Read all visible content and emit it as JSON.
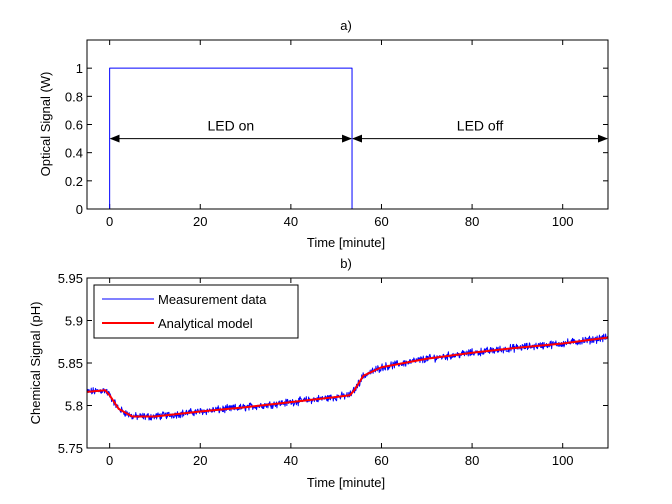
{
  "chart_data": [
    {
      "type": "line",
      "panel_label": "a)",
      "xlabel": "Time [minute]",
      "ylabel": "Optical Signal (W)",
      "xlim": [
        -5,
        110
      ],
      "ylim": [
        0,
        1.2
      ],
      "xticks": [
        0,
        20,
        40,
        60,
        80,
        100
      ],
      "yticks": [
        0,
        0.2,
        0.4,
        0.6,
        0.8,
        1
      ],
      "ytick_labels": [
        "0",
        "0.2",
        "0.4",
        "0.6",
        "0.8",
        "1"
      ],
      "series": [
        {
          "name": "Optical signal",
          "color": "#0000ff",
          "x": [
            -5,
            0,
            0,
            53.5,
            53.5,
            110
          ],
          "y": [
            0,
            0,
            1,
            1,
            0,
            0
          ]
        }
      ],
      "annotations": [
        {
          "text": "LED on",
          "from": 0,
          "to": 53.5,
          "y": 0.5
        },
        {
          "text": "LED off",
          "from": 53.5,
          "to": 110,
          "y": 0.5
        }
      ]
    },
    {
      "type": "line",
      "panel_label": "b)",
      "xlabel": "Time [minute]",
      "ylabel": "Chemical Signal (pH)",
      "xlim": [
        -5,
        110
      ],
      "ylim": [
        5.75,
        5.95
      ],
      "xticks": [
        0,
        20,
        40,
        60,
        80,
        100
      ],
      "yticks": [
        5.75,
        5.8,
        5.85,
        5.9,
        5.95
      ],
      "ytick_labels": [
        "5.75",
        "5.8",
        "5.85",
        "5.9",
        "5.95"
      ],
      "legend": {
        "position": "top-left"
      },
      "series": [
        {
          "name": "Measurement data",
          "color": "#0000ff",
          "noisy": true,
          "x": [
            -5,
            -1,
            0,
            2,
            5,
            10,
            20,
            30,
            40,
            50,
            53,
            54,
            56,
            60,
            70,
            80,
            90,
            100,
            110
          ],
          "y": [
            5.816,
            5.818,
            5.812,
            5.796,
            5.787,
            5.787,
            5.793,
            5.798,
            5.804,
            5.81,
            5.812,
            5.818,
            5.835,
            5.845,
            5.855,
            5.862,
            5.868,
            5.873,
            5.88
          ]
        },
        {
          "name": "Analytical model",
          "color": "#ff0000",
          "x": [
            -5,
            -1,
            0,
            2,
            5,
            10,
            20,
            30,
            40,
            50,
            53,
            54,
            56,
            60,
            70,
            80,
            90,
            100,
            110
          ],
          "y": [
            5.816,
            5.818,
            5.812,
            5.796,
            5.787,
            5.787,
            5.793,
            5.798,
            5.804,
            5.81,
            5.812,
            5.818,
            5.835,
            5.845,
            5.855,
            5.862,
            5.868,
            5.873,
            5.88
          ]
        }
      ]
    }
  ]
}
